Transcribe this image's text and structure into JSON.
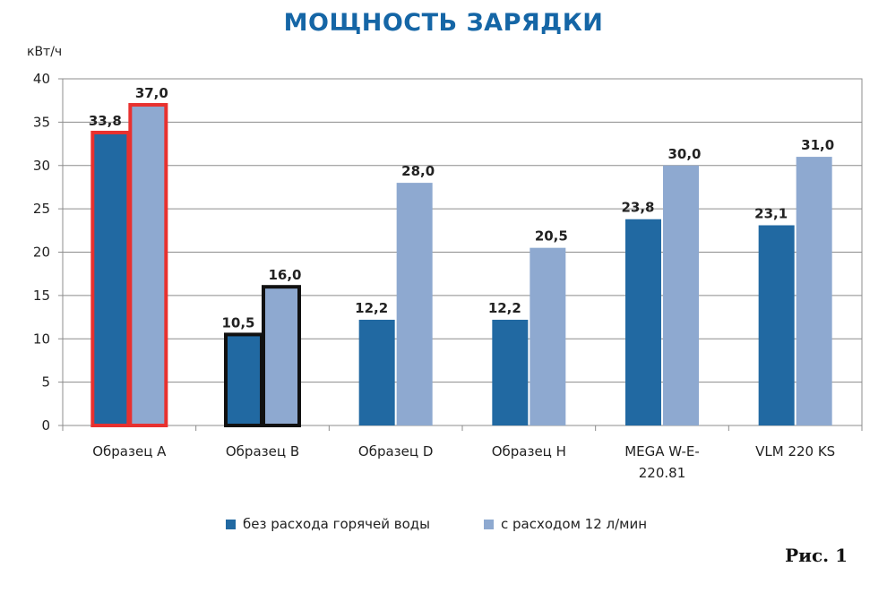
{
  "chart_data": {
    "type": "bar",
    "title": "МОЩНОСТЬ ЗАРЯДКИ",
    "ylabel": "кВт/ч",
    "ylim": [
      0,
      40
    ],
    "yticks": [
      0,
      5,
      10,
      15,
      20,
      25,
      30,
      35,
      40
    ],
    "grid": true,
    "legend_position": "bottom",
    "categories": [
      [
        "Образец A"
      ],
      [
        "Образец B"
      ],
      [
        "Образец D"
      ],
      [
        "Образец H"
      ],
      [
        "MEGA W-E-",
        "220.81"
      ],
      [
        "VLM 220 KS"
      ]
    ],
    "series": [
      {
        "name": "без расхода горячей воды",
        "color": "#2169a2",
        "values": [
          33.8,
          10.5,
          12.2,
          12.2,
          23.8,
          23.1
        ],
        "labels": [
          "33,8",
          "10,5",
          "12,2",
          "12,2",
          "23,8",
          "23,1"
        ]
      },
      {
        "name": "с расходом 12 л/мин",
        "color": "#8ea9d0",
        "values": [
          37.0,
          16.0,
          28.0,
          20.5,
          30.0,
          31.0
        ],
        "labels": [
          "37,0",
          "16,0",
          "28,0",
          "20,5",
          "30,0",
          "31,0"
        ]
      }
    ],
    "highlights": [
      {
        "category_index": 0,
        "outline_color": "#e8312f"
      },
      {
        "category_index": 1,
        "outline_color": "#111111"
      }
    ]
  },
  "figure_label": "Рис. 1"
}
